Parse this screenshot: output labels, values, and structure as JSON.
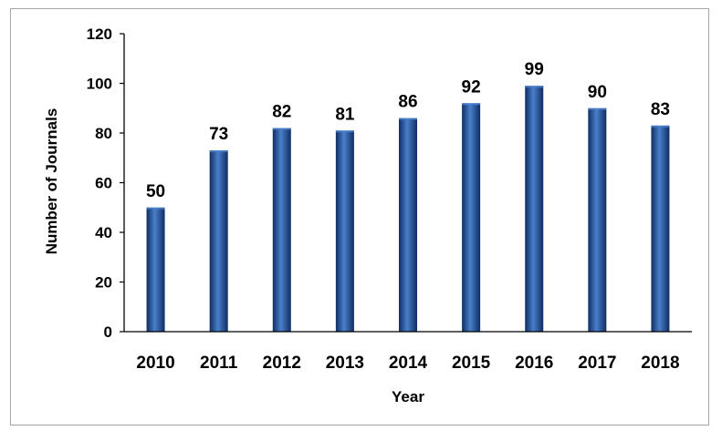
{
  "chart_data": {
    "type": "bar",
    "categories": [
      "2010",
      "2011",
      "2012",
      "2013",
      "2014",
      "2015",
      "2016",
      "2017",
      "2018"
    ],
    "values": [
      50,
      73,
      82,
      81,
      86,
      92,
      99,
      90,
      83
    ],
    "data_labels": [
      "50",
      "73",
      "82",
      "81",
      "86",
      "92",
      "99",
      "90",
      "83"
    ],
    "xlabel": "Year",
    "ylabel": "Number of Journals",
    "ylim": [
      0,
      120
    ],
    "yticks": [
      "0",
      "20",
      "40",
      "60",
      "80",
      "100",
      "120"
    ],
    "grid": false,
    "legend": "none",
    "bar_color": "#1F4E9A",
    "bar_color_light": "#4A7FCB",
    "bar_color_dark": "#0F2D62"
  }
}
